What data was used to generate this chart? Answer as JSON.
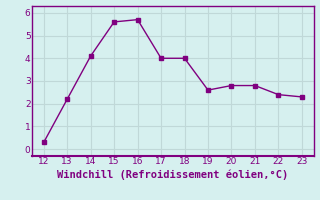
{
  "x": [
    12,
    13,
    14,
    15,
    16,
    17,
    18,
    19,
    20,
    21,
    22,
    23
  ],
  "y": [
    0.3,
    2.2,
    4.1,
    5.6,
    5.7,
    4.0,
    4.0,
    2.6,
    2.8,
    2.8,
    2.4,
    2.3
  ],
  "xlabel": "Windchill (Refroidissement éolien,°C)",
  "xlim": [
    11.5,
    23.5
  ],
  "ylim": [
    -0.3,
    6.3
  ],
  "xticks": [
    12,
    13,
    14,
    15,
    16,
    17,
    18,
    19,
    20,
    21,
    22,
    23
  ],
  "yticks": [
    0,
    1,
    2,
    3,
    4,
    5,
    6
  ],
  "line_color": "#800080",
  "marker": "s",
  "marker_size": 2.5,
  "bg_color": "#d6f0ef",
  "grid_color": "#c0d8d8",
  "xlabel_fontsize": 7.5,
  "tick_fontsize": 6.5,
  "tick_color": "#800080",
  "spine_color": "#800080"
}
